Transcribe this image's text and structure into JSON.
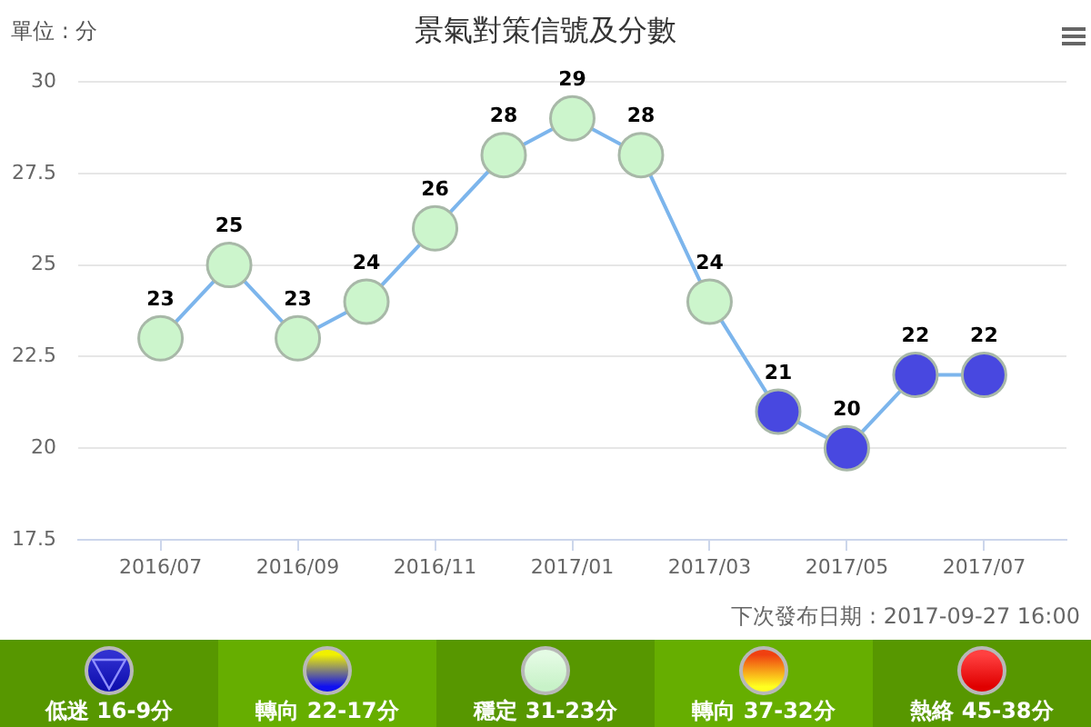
{
  "chart_data": {
    "type": "line",
    "title": "景氣對策信號及分數",
    "ylabel": "單位 : 分",
    "categories": [
      "2016/07",
      null,
      "2016/09",
      null,
      "2016/11",
      null,
      "2017/01",
      null,
      "2017/03",
      null,
      "2017/05",
      null,
      "2017/07"
    ],
    "values": [
      23,
      25,
      23,
      24,
      26,
      28,
      29,
      28,
      24,
      21,
      20,
      22,
      22
    ],
    "color": "#7cb5ec",
    "colors": [
      "#ccf5cc",
      "#ccf5cc",
      "#ccf5cc",
      "#ccf5cc",
      "#ccf5cc",
      "#ccf5cc",
      "#ccf5cc",
      "#ccf5cc",
      "#ccf5cc",
      "#4848e0",
      "#4848e0",
      "#4848e0",
      "#4848e0"
    ],
    "ylim": [
      17.5,
      30
    ],
    "yticks": [
      17.5,
      20,
      22.5,
      25,
      27.5,
      30
    ],
    "grid": "y",
    "legend": false,
    "marker": "circle",
    "data_labels": true,
    "annotations": [
      "低迷 16-9分",
      "轉向 22-17分",
      "穩定 31-23分",
      "轉向 37-32分",
      "熱絡 45-38分",
      "下次發布日期 : 2017-09-27 16:00"
    ]
  }
}
